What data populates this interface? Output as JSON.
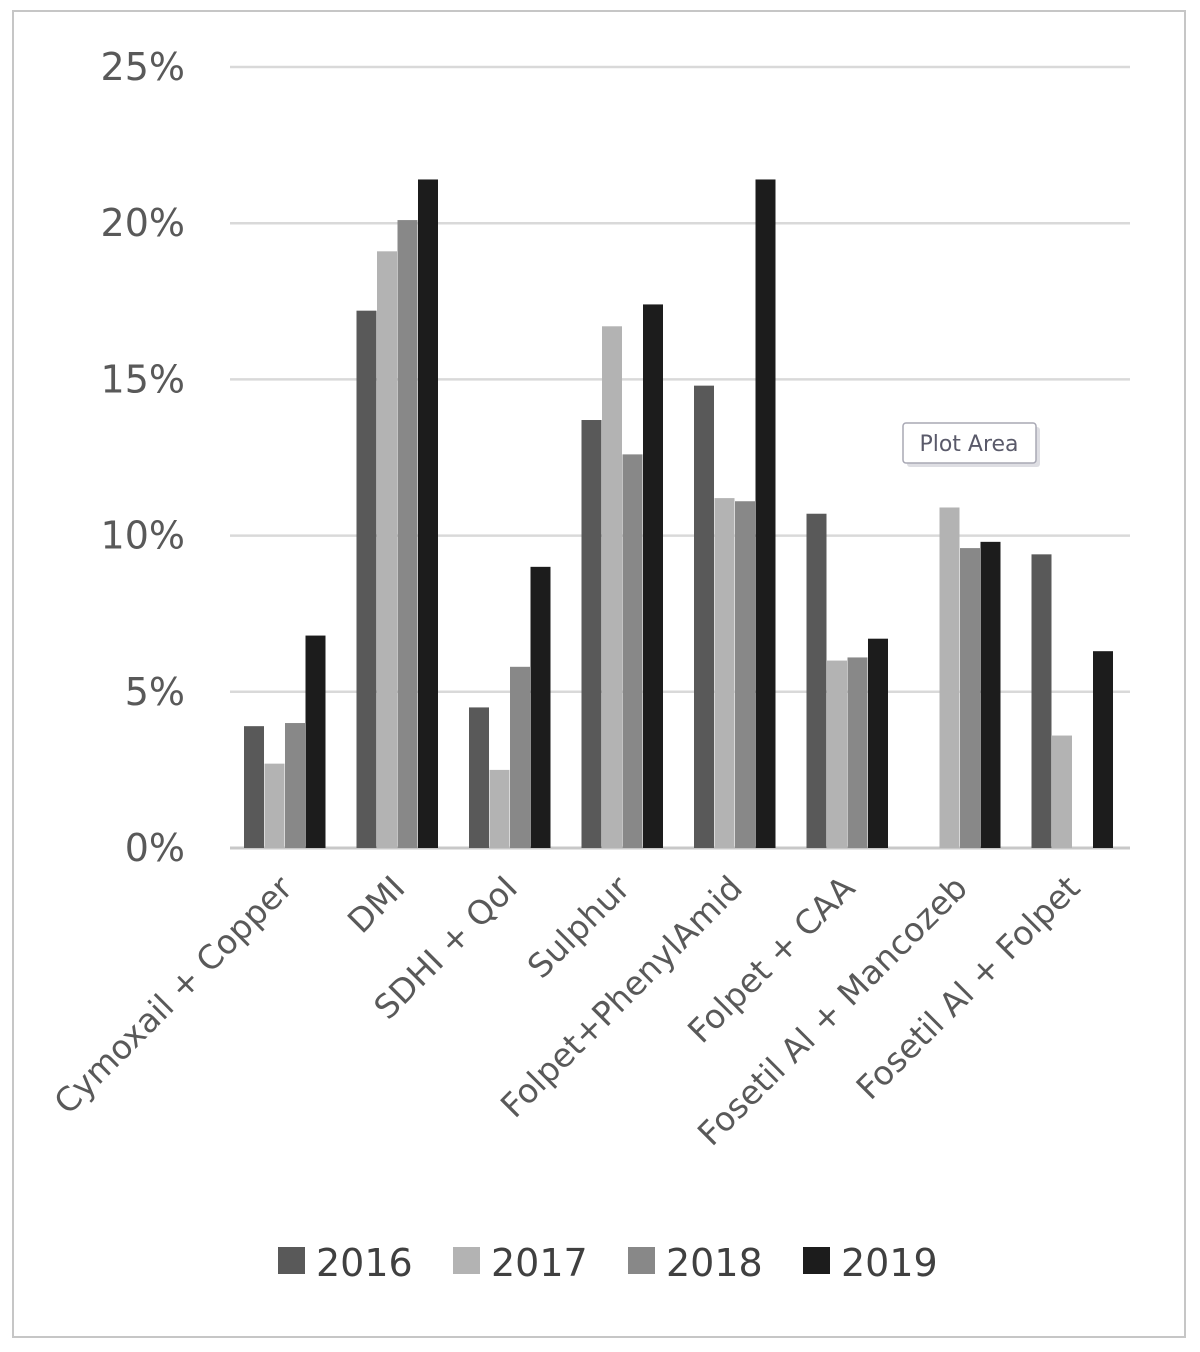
{
  "chart_data": {
    "type": "bar",
    "title": "",
    "xlabel": "",
    "ylabel": "",
    "ylim": [
      0,
      25
    ],
    "y_ticks": [
      "0%",
      "5%",
      "10%",
      "15%",
      "20%",
      "25%"
    ],
    "y_tick_values": [
      0,
      5,
      10,
      15,
      20,
      25
    ],
    "grid": true,
    "legend_position": "bottom",
    "categories": [
      "Cymoxail + Copper",
      "DMI",
      "SDHI + QoI",
      "Sulphur",
      "Folpet+PhenylAmid",
      "Folpet + CAA",
      "Fosetil Al + Mancozeb",
      "Fosetil Al + Folpet"
    ],
    "series": [
      {
        "name": "2016",
        "color": "#595959",
        "values": [
          3.9,
          17.2,
          4.5,
          13.7,
          14.8,
          10.7,
          0,
          9.4
        ]
      },
      {
        "name": "2017",
        "color": "#b3b3b3",
        "values": [
          2.7,
          19.1,
          2.5,
          16.7,
          11.2,
          6.0,
          10.9,
          3.6
        ]
      },
      {
        "name": "2018",
        "color": "#888888",
        "values": [
          4.0,
          20.1,
          5.8,
          12.6,
          11.1,
          6.1,
          9.6,
          0
        ]
      },
      {
        "name": "2019",
        "color": "#1c1c1c",
        "values": [
          6.8,
          21.4,
          9.0,
          17.4,
          21.4,
          6.7,
          9.8,
          6.3
        ]
      }
    ],
    "tooltip": "Plot Area"
  }
}
